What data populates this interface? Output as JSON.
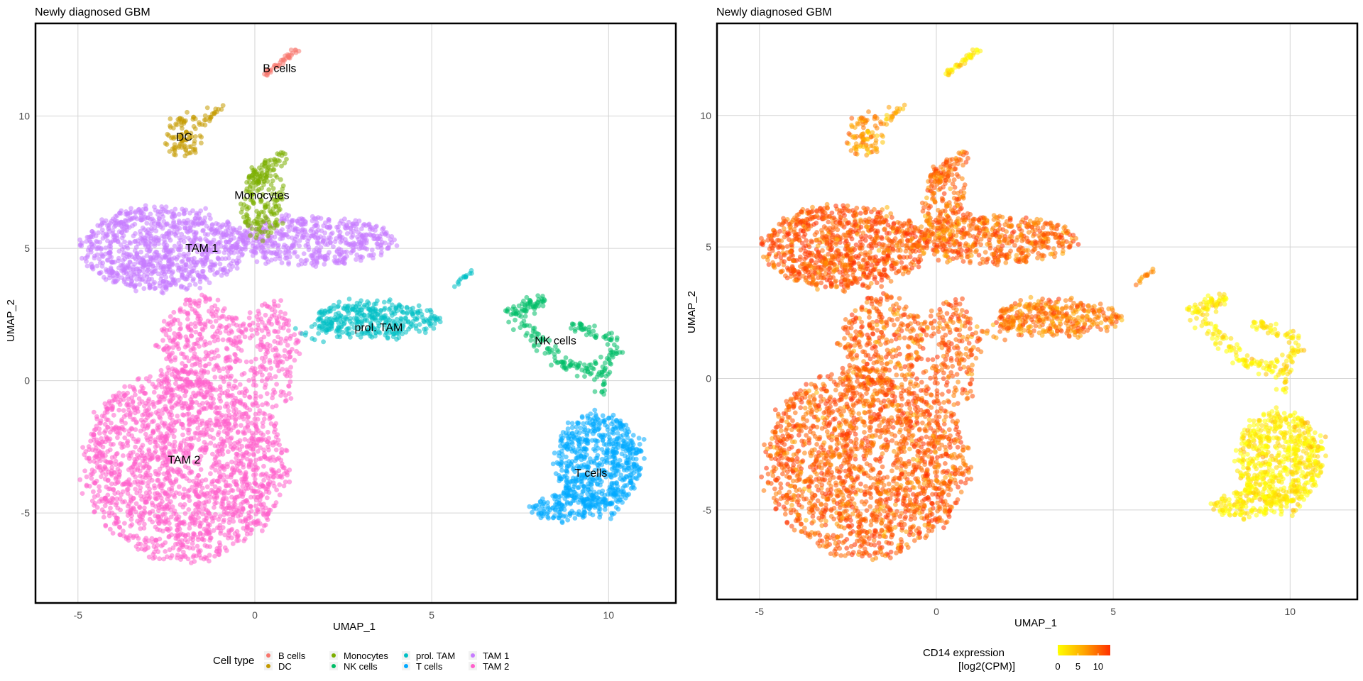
{
  "chart_data": [
    {
      "type": "scatter",
      "title": "Newly diagnosed GBM",
      "xlabel": "UMAP_1",
      "ylabel": "UMAP_2",
      "xlim": [
        -6.2,
        11.9
      ],
      "ylim": [
        -8.4,
        13.5
      ],
      "x_ticks": [
        "-5",
        "0",
        "5",
        "10"
      ],
      "y_ticks": [
        "-5",
        "0",
        "5",
        "10"
      ],
      "grid": true,
      "legend_title": "Cell type",
      "legend_position": "bottom",
      "color_by": "cell type",
      "series": [
        {
          "name": "B cells",
          "color": "#F8766D",
          "approx_center": [
            0.7,
            11.8
          ],
          "cluster_label": "B cells"
        },
        {
          "name": "DC",
          "color": "#C49A00",
          "approx_center": [
            -2.0,
            9.2
          ],
          "cluster_label": "DC"
        },
        {
          "name": "Monocytes",
          "color": "#7CAE00",
          "approx_center": [
            0.2,
            7.0
          ],
          "cluster_label": "Monocytes"
        },
        {
          "name": "NK cells",
          "color": "#00BE67",
          "approx_center": [
            8.5,
            1.5
          ],
          "cluster_label": "NK cells"
        },
        {
          "name": "prol. TAM",
          "color": "#00BFC4",
          "approx_center": [
            3.5,
            2.0
          ],
          "cluster_label": "prol. TAM"
        },
        {
          "name": "T cells",
          "color": "#00A9FF",
          "approx_center": [
            9.5,
            -3.5
          ],
          "cluster_label": "T cells"
        },
        {
          "name": "TAM 1",
          "color": "#C77CFF",
          "approx_center": [
            -1.5,
            5.0
          ],
          "cluster_label": "TAM 1"
        },
        {
          "name": "TAM 2",
          "color": "#FF61CC",
          "approx_center": [
            -2.0,
            -3.0
          ],
          "cluster_label": "TAM 2"
        }
      ]
    },
    {
      "type": "scatter",
      "title": "Newly diagnosed GBM",
      "xlabel": "UMAP_1",
      "ylabel": "UMAP_2",
      "xlim": [
        -6.2,
        11.9
      ],
      "ylim": [
        -8.4,
        13.5
      ],
      "x_ticks": [
        "-5",
        "0",
        "5",
        "10"
      ],
      "y_ticks": [
        "-5",
        "0",
        "5",
        "10"
      ],
      "grid": true,
      "color_by": "CD14 expression",
      "colorbar": {
        "title_line1": "CD14 expression",
        "title_line2": "[log2(CPM)]",
        "ticks": [
          "0",
          "5",
          "10"
        ],
        "range": [
          0,
          13
        ],
        "low_color": "#FFFF00",
        "high_color": "#FF3000",
        "position": "bottom"
      }
    }
  ]
}
